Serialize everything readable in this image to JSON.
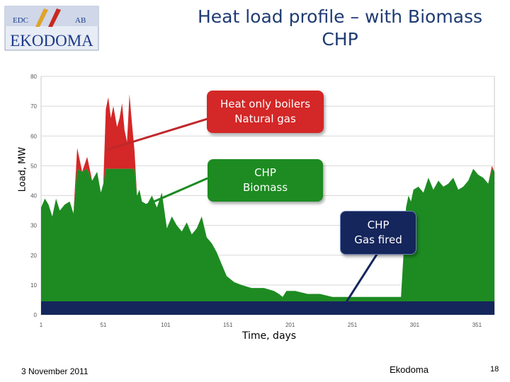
{
  "header": {
    "title_line1": "Heat load profile – with Biomass",
    "title_line2": "CHP",
    "logo_small_left": "EDC",
    "logo_small_right": "AB",
    "logo_text": "EKODOMA"
  },
  "callouts": {
    "heat_only": "Heat only boilers\nNatural gas",
    "chp_biomass": "CHP\nBiomass",
    "chp_gas": "CHP\nGas fired"
  },
  "footer": {
    "date": "3 November 2011",
    "organization": "Ekodoma",
    "page": "18"
  },
  "colors": {
    "heat_only": "#d42727",
    "chp_biomass": "#1d8b22",
    "chp_gas": "#15265c",
    "title": "#1f3b73"
  },
  "chart_data": {
    "type": "area",
    "xlabel": "Time, days",
    "ylabel": "Load, MW",
    "xlim": [
      1,
      365
    ],
    "ylim": [
      0,
      80
    ],
    "x_ticks": [
      1,
      51,
      101,
      151,
      201,
      251,
      301,
      351
    ],
    "y_ticks": [
      0,
      10,
      20,
      30,
      40,
      50,
      60,
      70,
      80
    ],
    "grid": "horizontal",
    "stacking": "capacity-limited",
    "series": [
      {
        "capacity_mw": 4.5
      },
      {
        "capacity_mw": 44.5
      },
      {
        "capacity_mw": null
      }
    ],
    "total_load": {
      "x": [
        1,
        4,
        7,
        10,
        13,
        16,
        20,
        24,
        27,
        30,
        34,
        38,
        42,
        46,
        49,
        51,
        53,
        55,
        57,
        59,
        62,
        64,
        66,
        68,
        70,
        72,
        74,
        76,
        78,
        80,
        82,
        86,
        90,
        94,
        98,
        102,
        106,
        110,
        114,
        118,
        122,
        126,
        130,
        134,
        138,
        142,
        146,
        150,
        156,
        162,
        170,
        180,
        188,
        192,
        195,
        198,
        205,
        215,
        225,
        235,
        245,
        255,
        265,
        275,
        285,
        290,
        292,
        294,
        296,
        298,
        300,
        304,
        308,
        312,
        316,
        320,
        324,
        328,
        332,
        336,
        340,
        344,
        348,
        352,
        356,
        360,
        363,
        365
      ],
      "y": [
        36,
        39,
        37,
        33,
        39,
        35,
        37,
        38,
        34,
        56,
        48,
        53,
        45,
        48,
        41,
        44,
        69,
        73,
        66,
        70,
        63,
        66,
        71,
        62,
        58,
        74,
        64,
        55,
        40,
        42,
        38,
        37,
        40,
        36,
        41,
        29,
        33,
        30,
        28,
        31,
        27,
        29,
        33,
        26,
        24,
        21,
        17,
        13,
        11,
        10,
        9,
        9,
        8,
        7,
        6,
        8,
        8,
        7,
        7,
        6,
        6,
        6,
        6,
        6,
        6,
        6,
        20,
        36,
        40,
        38,
        42,
        43,
        41,
        46,
        42,
        45,
        43,
        44,
        46,
        42,
        43,
        45,
        49,
        47,
        46,
        44,
        50,
        48
      ]
    }
  }
}
